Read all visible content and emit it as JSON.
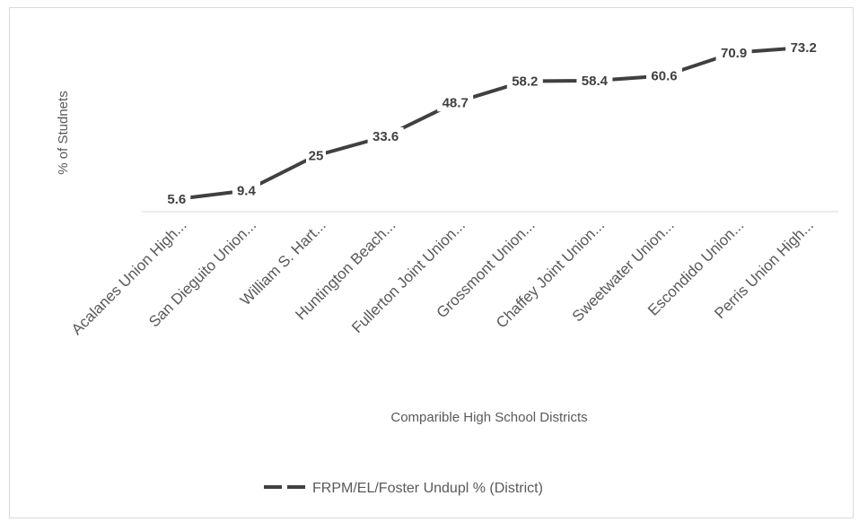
{
  "chart_data": {
    "type": "line",
    "categories": [
      "Acalanes Union High...",
      "San Dieguito Union...",
      "William S. Hart...",
      "Huntington Beach...",
      "Fullerton Joint Union...",
      "Grossmont Union...",
      "Chaffey Joint Union...",
      "Sweetwater Union...",
      "Escondido Union...",
      "Perris Union High..."
    ],
    "series": [
      {
        "name": "FRPM/EL/Foster Undupl % (District)",
        "values": [
          5.6,
          9.4,
          25,
          33.6,
          48.7,
          58.2,
          58.4,
          60.6,
          70.9,
          73.2
        ],
        "color": "#404040"
      }
    ],
    "data_labels": [
      "5.6",
      "9.4",
      "25",
      "33.6",
      "48.7",
      "58.2",
      "58.4",
      "60.6",
      "70.9",
      "73.2"
    ],
    "xlabel": "Comparible High School Districts",
    "ylabel": "% of Studnets",
    "line_style": "dashed",
    "ylim": [
      0,
      80
    ],
    "grid": false,
    "legend": "bottom"
  }
}
